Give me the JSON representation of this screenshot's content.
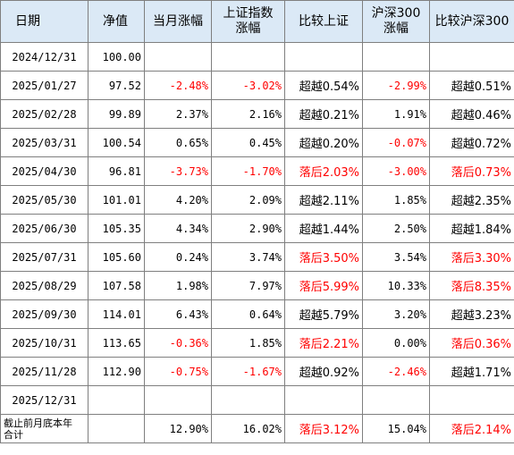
{
  "headers": [
    "日期",
    "净值",
    "当月涨幅",
    "上证指数\n涨幅",
    "比较上证",
    "沪深300\n涨幅",
    "比较沪深300"
  ],
  "rows": [
    {
      "date": "2024/12/31",
      "nav": "100.00",
      "month": "",
      "sh": "",
      "cmp_sh": "",
      "hs": "",
      "cmp_hs": ""
    },
    {
      "date": "2025/01/27",
      "nav": "97.52",
      "month": "-2.48%",
      "sh": "-3.02%",
      "cmp_sh": "超越0.54%",
      "hs": "-2.99%",
      "cmp_hs": "超越0.51%"
    },
    {
      "date": "2025/02/28",
      "nav": "99.89",
      "month": "2.37%",
      "sh": "2.16%",
      "cmp_sh": "超越0.21%",
      "hs": "1.91%",
      "cmp_hs": "超越0.46%"
    },
    {
      "date": "2025/03/31",
      "nav": "100.54",
      "month": "0.65%",
      "sh": "0.45%",
      "cmp_sh": "超越0.20%",
      "hs": "-0.07%",
      "cmp_hs": "超越0.72%"
    },
    {
      "date": "2025/04/30",
      "nav": "96.81",
      "month": "-3.73%",
      "sh": "-1.70%",
      "cmp_sh": "落后2.03%",
      "hs": "-3.00%",
      "cmp_hs": "落后0.73%"
    },
    {
      "date": "2025/05/30",
      "nav": "101.01",
      "month": "4.20%",
      "sh": "2.09%",
      "cmp_sh": "超越2.11%",
      "hs": "1.85%",
      "cmp_hs": "超越2.35%"
    },
    {
      "date": "2025/06/30",
      "nav": "105.35",
      "month": "4.34%",
      "sh": "2.90%",
      "cmp_sh": "超越1.44%",
      "hs": "2.50%",
      "cmp_hs": "超越1.84%"
    },
    {
      "date": "2025/07/31",
      "nav": "105.60",
      "month": "0.24%",
      "sh": "3.74%",
      "cmp_sh": "落后3.50%",
      "hs": "3.54%",
      "cmp_hs": "落后3.30%"
    },
    {
      "date": "2025/08/29",
      "nav": "107.58",
      "month": "1.98%",
      "sh": "7.97%",
      "cmp_sh": "落后5.99%",
      "hs": "10.33%",
      "cmp_hs": "落后8.35%"
    },
    {
      "date": "2025/09/30",
      "nav": "114.01",
      "month": "6.43%",
      "sh": "0.64%",
      "cmp_sh": "超越5.79%",
      "hs": "3.20%",
      "cmp_hs": "超越3.23%"
    },
    {
      "date": "2025/10/31",
      "nav": "113.65",
      "month": "-0.36%",
      "sh": "1.85%",
      "cmp_sh": "落后2.21%",
      "hs": "0.00%",
      "cmp_hs": "落后0.36%"
    },
    {
      "date": "2025/11/28",
      "nav": "112.90",
      "month": "-0.75%",
      "sh": "-1.67%",
      "cmp_sh": "超越0.92%",
      "hs": "-2.46%",
      "cmp_hs": "超越1.71%"
    },
    {
      "date": "2025/12/31",
      "nav": "",
      "month": "",
      "sh": "",
      "cmp_sh": "",
      "hs": "",
      "cmp_hs": ""
    }
  ],
  "summary": {
    "date": "截止前月底本年\n合计",
    "nav": "",
    "month": "12.90%",
    "sh": "16.02%",
    "cmp_sh": "落后3.12%",
    "hs": "15.04%",
    "cmp_hs": "落后2.14%"
  },
  "colors": {
    "header_bg": "#dbe9f6",
    "negative": "#ff0000",
    "border": "#7f7f7f"
  }
}
